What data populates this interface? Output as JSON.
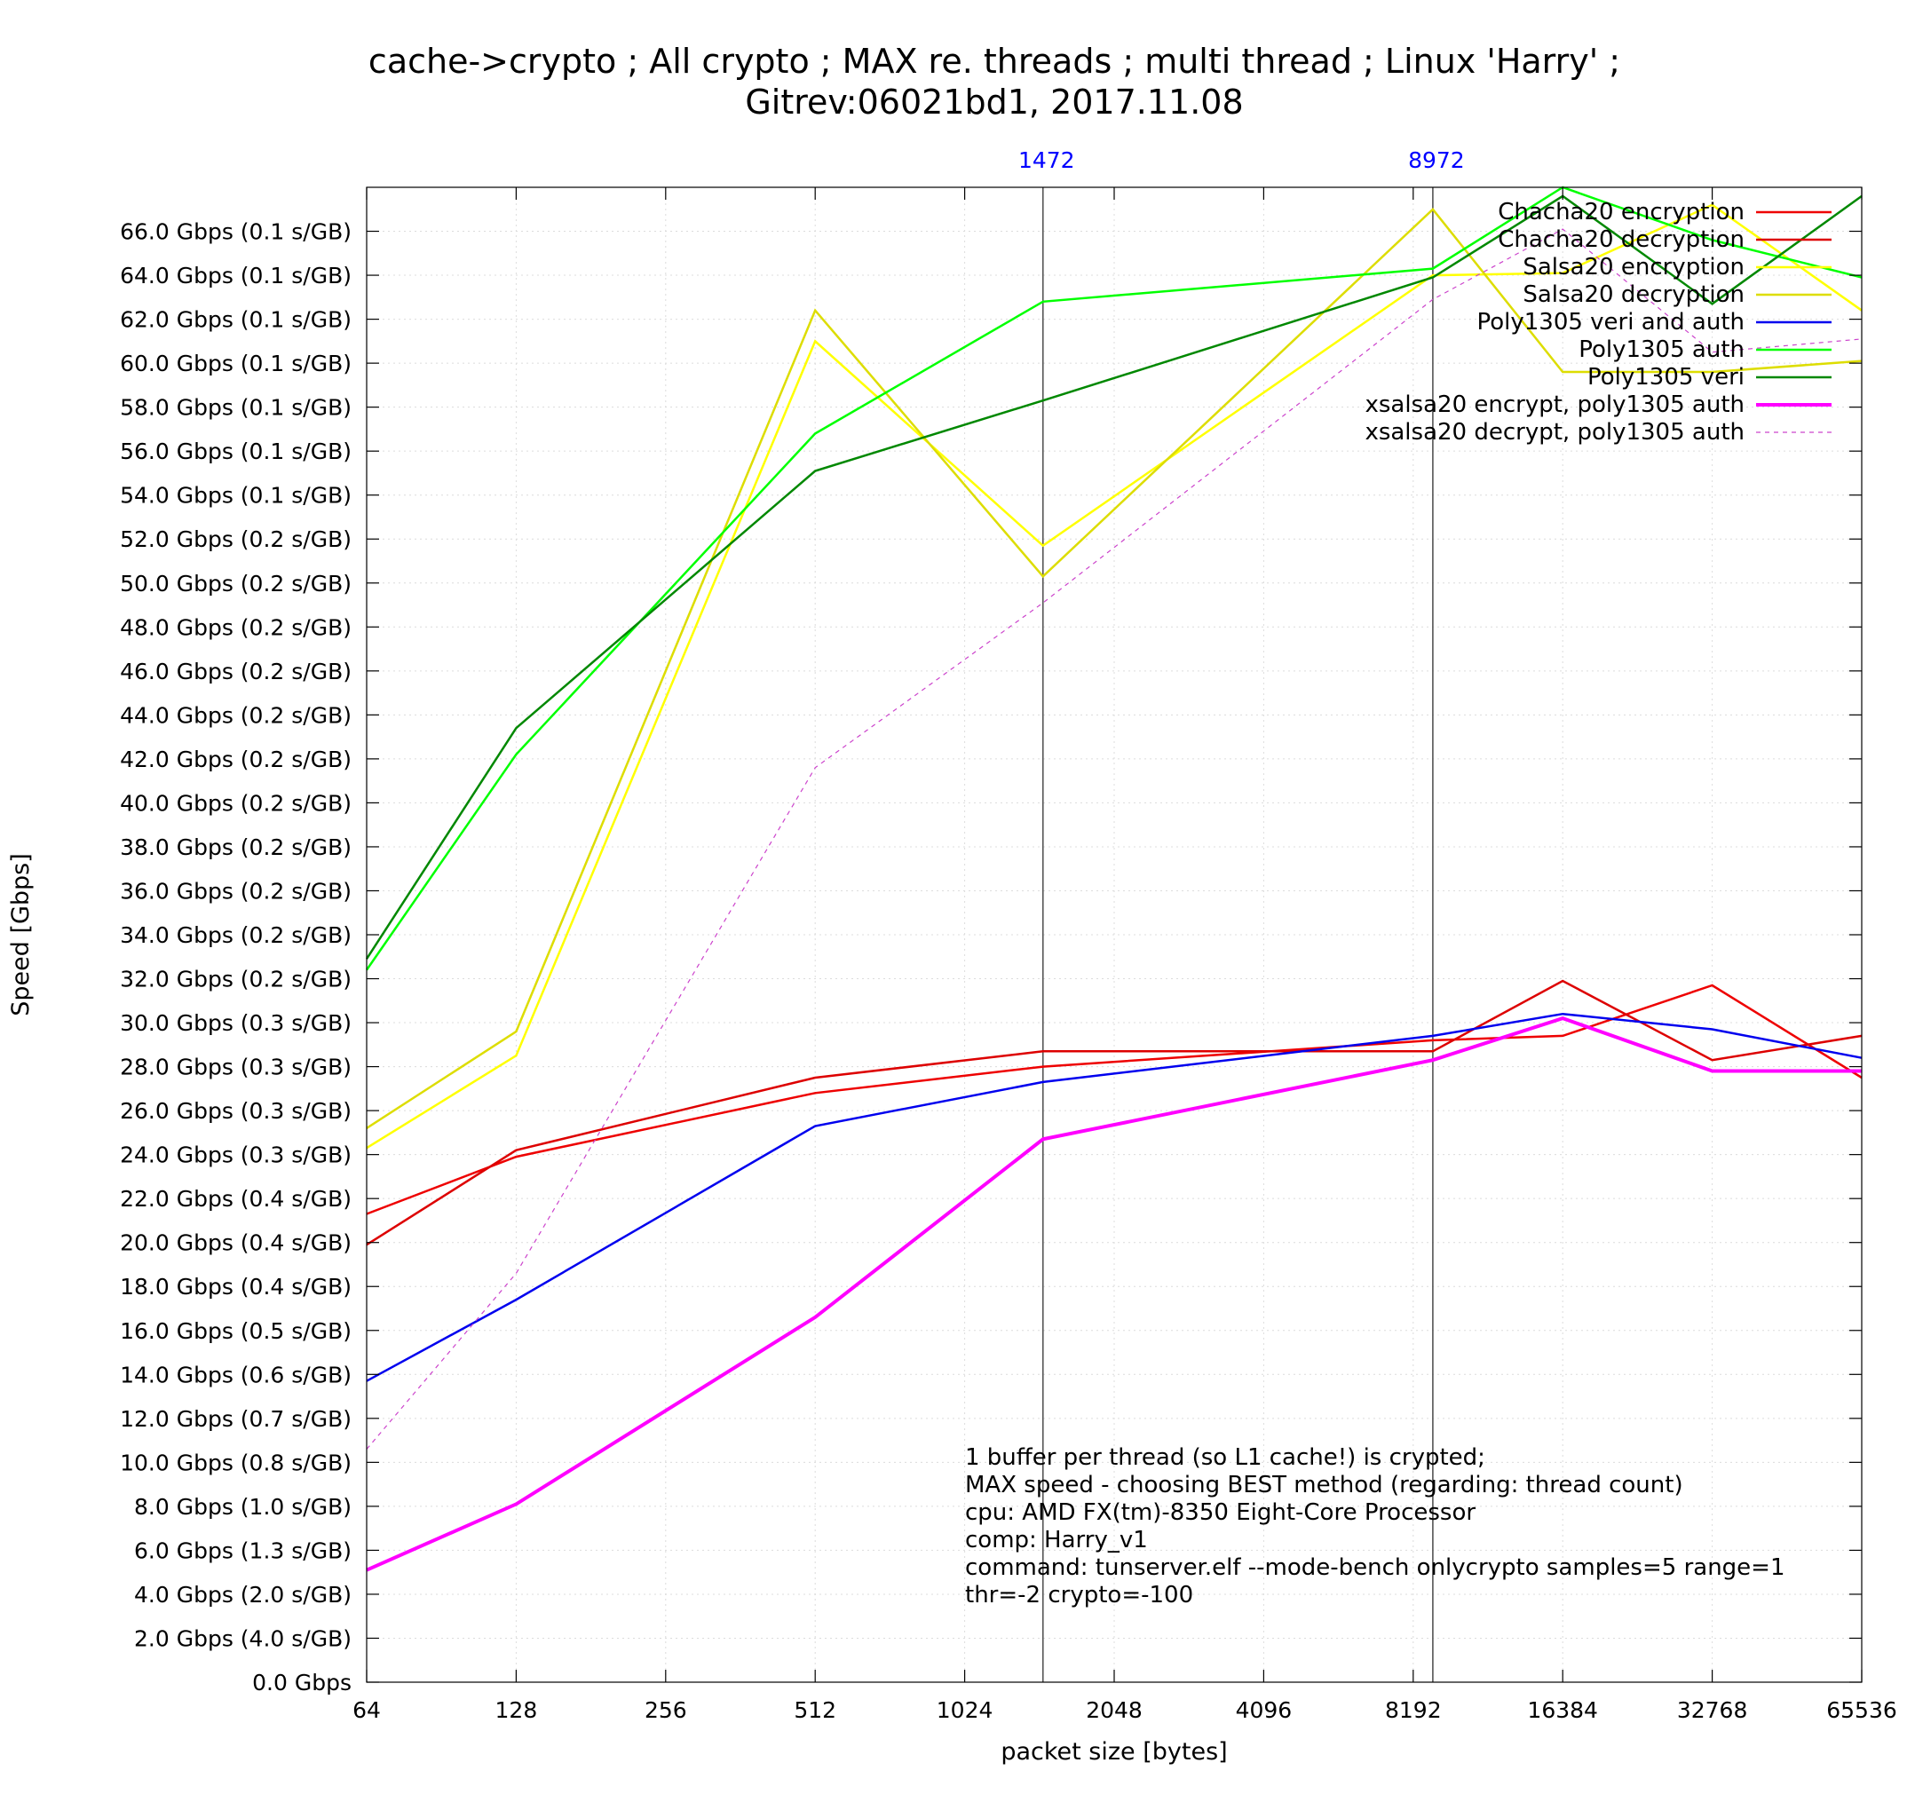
{
  "chart_data": {
    "type": "line",
    "title": "cache->crypto ; All crypto ; MAX re. threads ; multi thread ; Linux 'Harry' ;",
    "subtitle": "Gitrev:06021bd1, 2017.11.08",
    "xlabel": "packet size [bytes]",
    "ylabel": "Speed [Gbps]",
    "x_scale": "log2",
    "xlim": [
      64,
      65536
    ],
    "ylim": [
      0,
      68
    ],
    "grid": true,
    "legend_position": "top-right",
    "x_ticks": [
      {
        "value": 64,
        "label": "64"
      },
      {
        "value": 128,
        "label": "128"
      },
      {
        "value": 256,
        "label": "256"
      },
      {
        "value": 512,
        "label": "512"
      },
      {
        "value": 1024,
        "label": "1024"
      },
      {
        "value": 2048,
        "label": "2048"
      },
      {
        "value": 4096,
        "label": "4096"
      },
      {
        "value": 8192,
        "label": "8192"
      },
      {
        "value": 16384,
        "label": "16384"
      },
      {
        "value": 32768,
        "label": "32768"
      },
      {
        "value": 65536,
        "label": "65536"
      }
    ],
    "y_ticks": [
      {
        "value": 0,
        "label": "0.0 Gbps"
      },
      {
        "value": 2,
        "label": "2.0 Gbps (4.0 s/GB)"
      },
      {
        "value": 4,
        "label": "4.0 Gbps (2.0 s/GB)"
      },
      {
        "value": 6,
        "label": "6.0 Gbps (1.3 s/GB)"
      },
      {
        "value": 8,
        "label": "8.0 Gbps (1.0 s/GB)"
      },
      {
        "value": 10,
        "label": "10.0 Gbps (0.8 s/GB)"
      },
      {
        "value": 12,
        "label": "12.0 Gbps (0.7 s/GB)"
      },
      {
        "value": 14,
        "label": "14.0 Gbps (0.6 s/GB)"
      },
      {
        "value": 16,
        "label": "16.0 Gbps (0.5 s/GB)"
      },
      {
        "value": 18,
        "label": "18.0 Gbps (0.4 s/GB)"
      },
      {
        "value": 20,
        "label": "20.0 Gbps (0.4 s/GB)"
      },
      {
        "value": 22,
        "label": "22.0 Gbps (0.4 s/GB)"
      },
      {
        "value": 24,
        "label": "24.0 Gbps (0.3 s/GB)"
      },
      {
        "value": 26,
        "label": "26.0 Gbps (0.3 s/GB)"
      },
      {
        "value": 28,
        "label": "28.0 Gbps (0.3 s/GB)"
      },
      {
        "value": 30,
        "label": "30.0 Gbps (0.3 s/GB)"
      },
      {
        "value": 32,
        "label": "32.0 Gbps (0.2 s/GB)"
      },
      {
        "value": 34,
        "label": "34.0 Gbps (0.2 s/GB)"
      },
      {
        "value": 36,
        "label": "36.0 Gbps (0.2 s/GB)"
      },
      {
        "value": 38,
        "label": "38.0 Gbps (0.2 s/GB)"
      },
      {
        "value": 40,
        "label": "40.0 Gbps (0.2 s/GB)"
      },
      {
        "value": 42,
        "label": "42.0 Gbps (0.2 s/GB)"
      },
      {
        "value": 44,
        "label": "44.0 Gbps (0.2 s/GB)"
      },
      {
        "value": 46,
        "label": "46.0 Gbps (0.2 s/GB)"
      },
      {
        "value": 48,
        "label": "48.0 Gbps (0.2 s/GB)"
      },
      {
        "value": 50,
        "label": "50.0 Gbps (0.2 s/GB)"
      },
      {
        "value": 52,
        "label": "52.0 Gbps (0.2 s/GB)"
      },
      {
        "value": 54,
        "label": "54.0 Gbps (0.1 s/GB)"
      },
      {
        "value": 56,
        "label": "56.0 Gbps (0.1 s/GB)"
      },
      {
        "value": 58,
        "label": "58.0 Gbps (0.1 s/GB)"
      },
      {
        "value": 60,
        "label": "60.0 Gbps (0.1 s/GB)"
      },
      {
        "value": 62,
        "label": "62.0 Gbps (0.1 s/GB)"
      },
      {
        "value": 64,
        "label": "64.0 Gbps (0.1 s/GB)"
      },
      {
        "value": 66,
        "label": "66.0 Gbps (0.1 s/GB)"
      }
    ],
    "vertical_markers": [
      {
        "x": 1472,
        "label": "1472",
        "color": "#0000ff"
      },
      {
        "x": 8972,
        "label": "8972",
        "color": "#0000ff"
      }
    ],
    "series": [
      {
        "name": "Chacha20 encryption",
        "color": "#ee0000",
        "width": 2.5,
        "dashed": false,
        "x": [
          64,
          128,
          512,
          1472,
          8972,
          16384,
          32768,
          65536
        ],
        "y": [
          21.3,
          23.9,
          26.8,
          28.0,
          29.2,
          29.4,
          31.7,
          27.5
        ]
      },
      {
        "name": "Chacha20 decryption",
        "color": "#dd0000",
        "width": 2.5,
        "dashed": false,
        "x": [
          64,
          128,
          512,
          1472,
          8972,
          16384,
          32768,
          65536
        ],
        "y": [
          19.9,
          24.2,
          27.5,
          28.7,
          28.7,
          31.9,
          28.3,
          29.4
        ]
      },
      {
        "name": "Salsa20 encryption",
        "color": "#ffff00",
        "width": 2.5,
        "dashed": false,
        "x": [
          64,
          128,
          512,
          1472,
          8972,
          16384,
          32768,
          65536
        ],
        "y": [
          24.3,
          28.5,
          61.0,
          51.7,
          64.0,
          64.1,
          67.2,
          62.4
        ]
      },
      {
        "name": "Salsa20 decryption",
        "color": "#dddd00",
        "width": 2.5,
        "dashed": false,
        "x": [
          64,
          128,
          512,
          1472,
          8972,
          16384,
          32768,
          65536
        ],
        "y": [
          25.2,
          29.6,
          62.4,
          50.3,
          67.0,
          59.6,
          59.6,
          60.1
        ]
      },
      {
        "name": "Poly1305 veri and auth",
        "color": "#0000ee",
        "width": 2.5,
        "dashed": false,
        "x": [
          64,
          128,
          512,
          1472,
          8972,
          16384,
          32768,
          65536
        ],
        "y": [
          13.7,
          17.4,
          25.3,
          27.3,
          29.4,
          30.4,
          29.7,
          28.4
        ]
      },
      {
        "name": "Poly1305 auth",
        "color": "#00ff00",
        "width": 2.5,
        "dashed": false,
        "x": [
          64,
          128,
          512,
          1472,
          8972,
          16384,
          32768,
          65536
        ],
        "y": [
          32.4,
          42.2,
          56.8,
          62.8,
          64.3,
          68.0,
          65.6,
          63.9
        ]
      },
      {
        "name": "Poly1305 veri",
        "color": "#008800",
        "width": 2.5,
        "dashed": false,
        "x": [
          64,
          128,
          512,
          1472,
          8972,
          16384,
          32768,
          65536
        ],
        "y": [
          32.9,
          43.4,
          55.1,
          58.3,
          63.9,
          67.6,
          62.7,
          67.6
        ]
      },
      {
        "name": "xsalsa20 encrypt, poly1305 auth",
        "color": "#ff00ff",
        "width": 4,
        "dashed": false,
        "x": [
          64,
          128,
          512,
          1472,
          8972,
          16384,
          32768,
          65536
        ],
        "y": [
          5.1,
          8.1,
          16.6,
          24.7,
          28.3,
          30.2,
          27.8,
          27.8
        ]
      },
      {
        "name": "xsalsa20 decrypt, poly1305 auth",
        "color": "#cc44cc",
        "width": 1.2,
        "dashed": true,
        "x": [
          64,
          128,
          512,
          1472,
          8972,
          16384,
          32768,
          65536
        ],
        "y": [
          10.6,
          18.6,
          41.6,
          49.1,
          62.9,
          66.1,
          60.5,
          61.1
        ]
      }
    ],
    "annotation": {
      "lines": [
        "1 buffer per thread (so L1 cache!) is crypted;",
        "MAX speed - choosing BEST method (regarding: thread count)",
        "cpu: AMD FX(tm)-8350 Eight-Core Processor",
        "comp: Harry_v1",
        "command: tunserver.elf --mode-bench onlycrypto samples=5 range=1",
        "thr=-2 crypto=-100"
      ]
    }
  }
}
